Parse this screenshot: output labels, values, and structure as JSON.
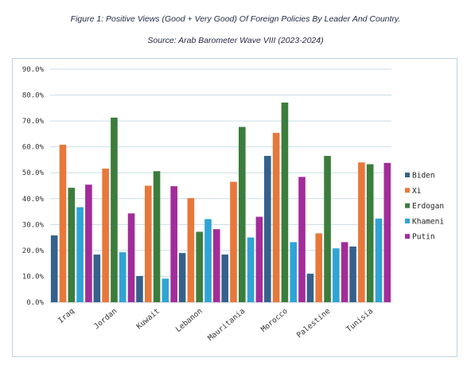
{
  "chart_data": {
    "type": "bar",
    "title": "Figure 1: Positive Views (Good + Very Good) Of Foreign Policies By Leader And Country.",
    "subtitle": "Source: Arab Barometer Wave VIII (2023-2024)",
    "xlabel": "",
    "ylabel": "",
    "ylim": [
      0,
      90
    ],
    "y_ticks": [
      "0.0%",
      "10.0%",
      "20.0%",
      "30.0%",
      "40.0%",
      "50.0%",
      "60.0%",
      "70.0%",
      "80.0%",
      "90.0%"
    ],
    "grid": true,
    "legend_position": "right",
    "categories": [
      "Iraq",
      "Jordan",
      "Kuwait",
      "Lebanon",
      "Mauritania",
      "Morocco",
      "Palestine",
      "Tunisia"
    ],
    "series": [
      {
        "name": "Biden",
        "color": "#35618a",
        "values": [
          25.8,
          18.4,
          10.1,
          19.0,
          18.4,
          56.5,
          11.0,
          21.5
        ]
      },
      {
        "name": "Xi",
        "color": "#e8773a",
        "values": [
          60.8,
          51.6,
          45.0,
          40.2,
          46.5,
          65.4,
          26.6,
          54.0
        ]
      },
      {
        "name": "Erdogan",
        "color": "#3b7d3c",
        "values": [
          44.2,
          71.3,
          50.6,
          27.2,
          67.7,
          77.1,
          56.5,
          53.3
        ]
      },
      {
        "name": "Khameni",
        "color": "#2fa4d6",
        "values": [
          36.7,
          19.3,
          9.1,
          32.1,
          25.0,
          23.2,
          20.8,
          32.3
        ]
      },
      {
        "name": "Putin",
        "color": "#a22c9a",
        "values": [
          45.4,
          34.3,
          44.8,
          28.2,
          33.0,
          48.4,
          23.2,
          53.8
        ]
      }
    ]
  }
}
